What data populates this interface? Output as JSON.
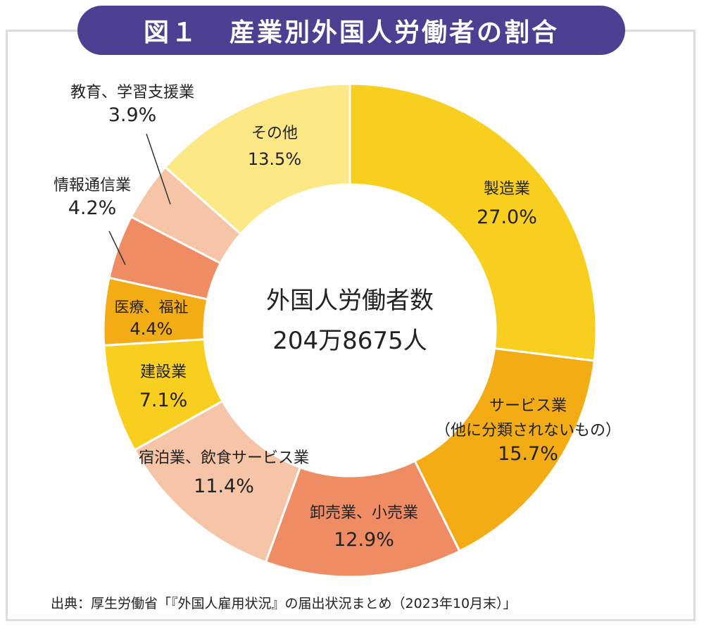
{
  "title": {
    "figure_no": "図１",
    "text": "産業別外国人労働者の割合"
  },
  "center": {
    "line1": "外国人労働者数",
    "line2": "204万8675人"
  },
  "source": "出典：厚生労働省「『外国人雇用状況』の届出状況まとめ（2023年10月末）」",
  "chart_data": {
    "type": "pie",
    "variant": "donut",
    "title": "産業別外国人労働者の割合",
    "total_label": "204万8675人",
    "slices": [
      {
        "name": "製造業",
        "name2": "",
        "value": 27.0,
        "pct": "27.0%",
        "color": "#f9cf1f"
      },
      {
        "name": "サービス業",
        "name2": "（他に分類されないもの）",
        "value": 15.7,
        "pct": "15.7%",
        "color": "#f3ac13"
      },
      {
        "name": "卸売業、小売業",
        "name2": "",
        "value": 12.9,
        "pct": "12.9%",
        "color": "#ef8c63"
      },
      {
        "name": "宿泊業、飲食サービス業",
        "name2": "",
        "value": 11.4,
        "pct": "11.4%",
        "color": "#f6c4a7"
      },
      {
        "name": "建設業",
        "name2": "",
        "value": 7.1,
        "pct": "7.1%",
        "color": "#f9cf1f"
      },
      {
        "name": "医療、福祉",
        "name2": "",
        "value": 4.4,
        "pct": "4.4%",
        "color": "#f3ac13"
      },
      {
        "name": "情報通信業",
        "name2": "",
        "value": 4.2,
        "pct": "4.2%",
        "color": "#ef8c63"
      },
      {
        "name": "教育、学習支援業",
        "name2": "",
        "value": 3.9,
        "pct": "3.9%",
        "color": "#f6c4a7"
      },
      {
        "name": "その他",
        "name2": "",
        "value": 13.5,
        "pct": "13.5%",
        "color": "#fde886"
      }
    ]
  }
}
